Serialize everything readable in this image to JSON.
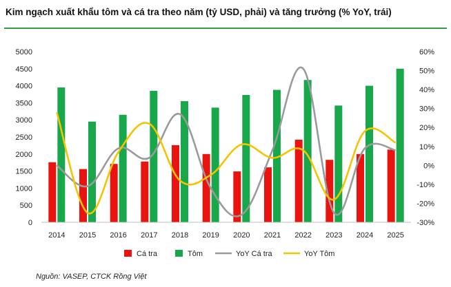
{
  "title": "Kim ngạch xuất khẩu tôm và cá tra theo năm (tỷ USD, phải) và tăng trưởng (% YoY, trái)",
  "source": "Nguồn: VASEP, CTCK Rồng Việt",
  "colors": {
    "ca_tra": "#e8140f",
    "tom": "#18a84b",
    "yoy_ca_tra": "#9a9a9a",
    "yoy_tom": "#f5c400",
    "rule": "#2e9e3f"
  },
  "chart_data": {
    "type": "bar",
    "categories": [
      "2014",
      "2015",
      "2016",
      "2017",
      "2018",
      "2019",
      "2020",
      "2021",
      "2022",
      "2023",
      "2024",
      "2025"
    ],
    "series": [
      {
        "name": "Cá tra",
        "type": "bar",
        "axis": "left",
        "values": [
          1760,
          1560,
          1710,
          1780,
          2260,
          2000,
          1490,
          1610,
          2420,
          1830,
          2000,
          2130
        ]
      },
      {
        "name": "Tôm",
        "type": "bar",
        "axis": "left",
        "values": [
          3950,
          2950,
          3150,
          3850,
          3550,
          3360,
          3730,
          3880,
          4170,
          3420,
          4000,
          4500
        ]
      },
      {
        "name": "YoY Cá tra",
        "type": "line",
        "axis": "right",
        "values": [
          0,
          -11,
          9,
          4,
          27,
          -12,
          -26,
          8,
          51,
          -25,
          9,
          8
        ]
      },
      {
        "name": "YoY Tôm",
        "type": "line",
        "axis": "right",
        "values": [
          28,
          -25,
          7,
          22,
          -8,
          -5,
          11,
          4,
          8,
          -18,
          18,
          12
        ]
      }
    ],
    "left_axis": {
      "ylim": [
        0,
        5000
      ],
      "ticks": [
        "0",
        "500",
        "1000",
        "1500",
        "2000",
        "2500",
        "3000",
        "3500",
        "4000",
        "4500",
        "5000"
      ]
    },
    "right_axis": {
      "ylim": [
        -30,
        60
      ],
      "ticks": [
        "-30%",
        "-20%",
        "-10%",
        "0%",
        "10%",
        "20%",
        "30%",
        "40%",
        "50%",
        "60%"
      ]
    },
    "grid": false,
    "legend": "bottom"
  }
}
